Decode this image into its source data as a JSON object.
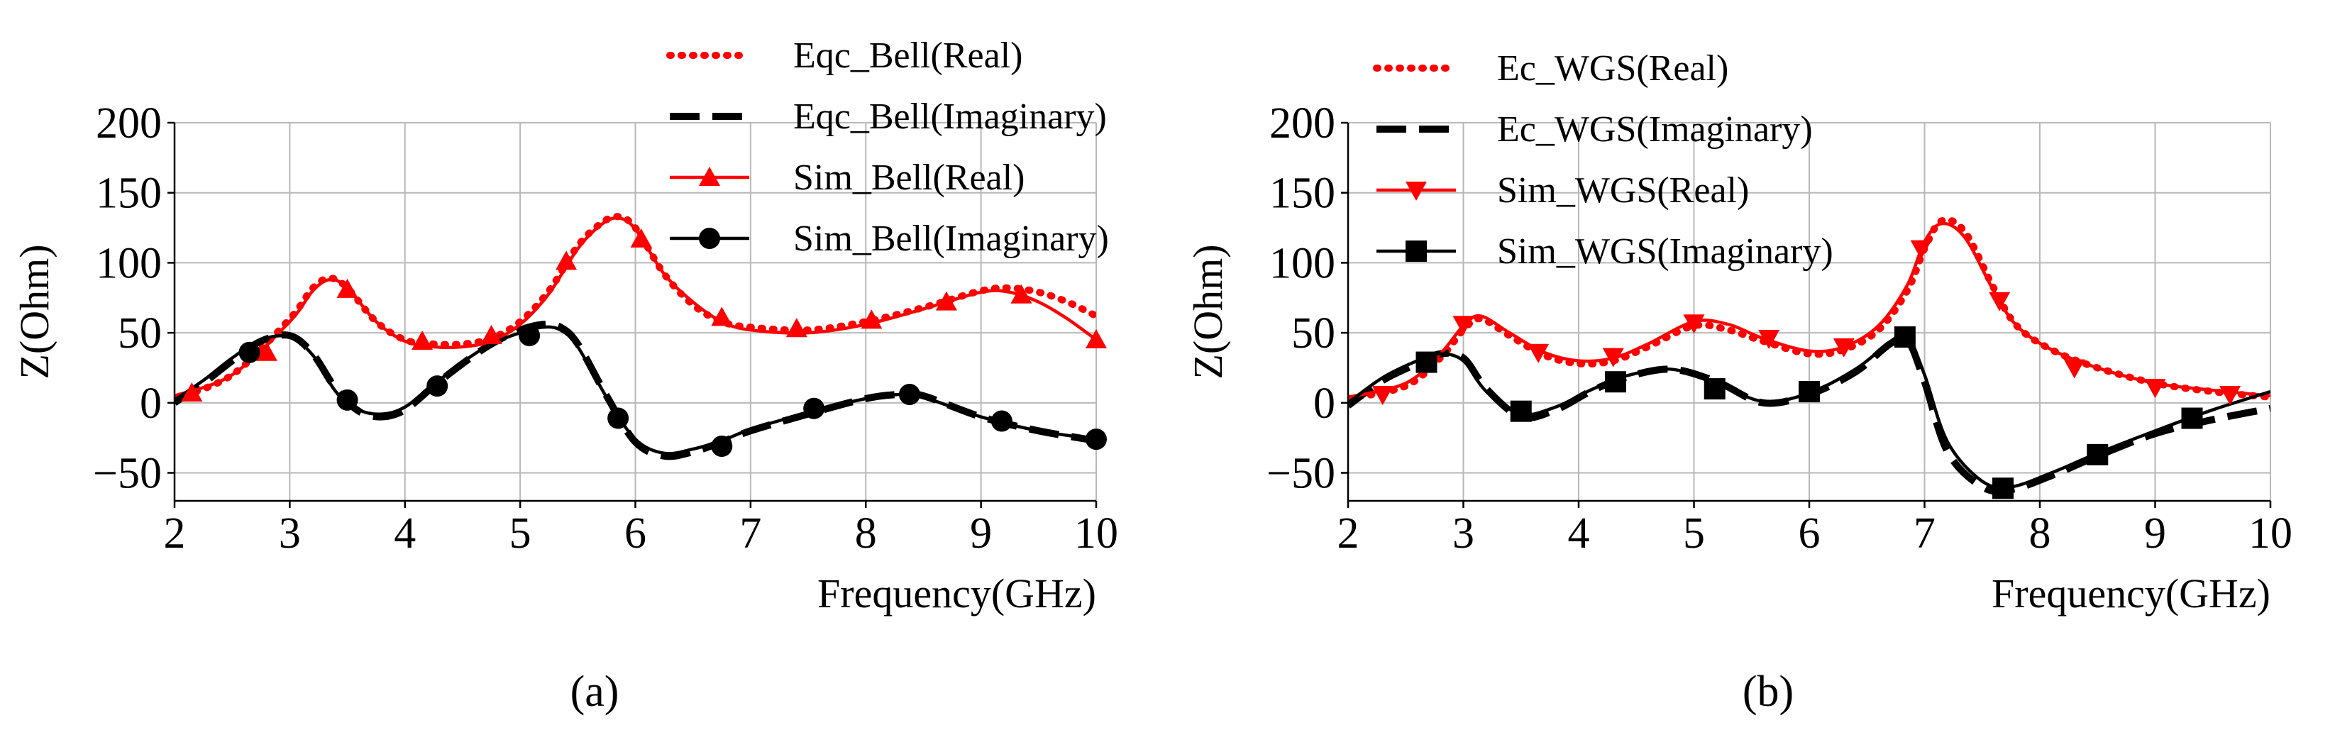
{
  "chart_data": [
    {
      "type": "line",
      "caption": "(a)",
      "xlabel": "Frequency(GHz)",
      "ylabel": "Z(Ohm)",
      "xlim": [
        2,
        10
      ],
      "ylim": [
        -70,
        200
      ],
      "xticks": [
        "2",
        "3",
        "4",
        "5",
        "6",
        "7",
        "8",
        "9",
        "10"
      ],
      "yticks": [
        "−50",
        "0",
        "50",
        "100",
        "150",
        "200"
      ],
      "ytick_values": [
        -50,
        0,
        50,
        100,
        150,
        200
      ],
      "grid": true,
      "legend_position": "top-center",
      "series": [
        {
          "name": "Eqc_Bell(Real)",
          "style": "dotted",
          "color": "#ff0000",
          "x": [
            2,
            2.5,
            3,
            3.2,
            3.35,
            3.5,
            3.75,
            4,
            4.25,
            4.5,
            4.75,
            5,
            5.25,
            5.5,
            5.7,
            5.85,
            6,
            6.25,
            6.5,
            6.75,
            7,
            7.5,
            8,
            8.5,
            9,
            9.25,
            9.5,
            9.75,
            10
          ],
          "y": [
            3,
            20,
            60,
            82,
            89,
            82,
            58,
            45,
            42,
            42,
            46,
            58,
            80,
            112,
            128,
            133,
            125,
            92,
            70,
            58,
            54,
            52,
            58,
            68,
            80,
            82,
            79,
            72,
            62
          ]
        },
        {
          "name": "Eqc_Bell(Imaginary)",
          "style": "dashed",
          "color": "#000000",
          "x": [
            2,
            2.25,
            2.5,
            2.75,
            3,
            3.2,
            3.4,
            3.6,
            3.8,
            4,
            4.25,
            4.5,
            4.75,
            5,
            5.2,
            5.35,
            5.5,
            5.75,
            6,
            6.25,
            6.5,
            6.75,
            7,
            7.5,
            8,
            8.3,
            8.5,
            9,
            9.5,
            10
          ],
          "y": [
            0,
            14,
            30,
            44,
            48,
            35,
            10,
            -6,
            -10,
            -5,
            12,
            28,
            42,
            52,
            56,
            54,
            42,
            5,
            -28,
            -38,
            -35,
            -28,
            -20,
            -8,
            3,
            6,
            5,
            -10,
            -20,
            -27
          ]
        },
        {
          "name": "Sim_Bell(Real)",
          "style": "solid-triangle-up",
          "color": "#ff0000",
          "x": [
            2,
            2.5,
            3,
            3.2,
            3.35,
            3.5,
            3.75,
            4,
            4.25,
            4.5,
            4.75,
            5,
            5.25,
            5.5,
            5.7,
            5.85,
            6,
            6.25,
            6.5,
            6.75,
            7,
            7.5,
            8,
            8.5,
            9,
            9.25,
            9.5,
            9.75,
            10
          ],
          "y": [
            5,
            20,
            58,
            80,
            88,
            82,
            58,
            44,
            40,
            40,
            44,
            56,
            78,
            110,
            127,
            132,
            124,
            92,
            72,
            58,
            52,
            50,
            56,
            67,
            79,
            79,
            72,
            60,
            45
          ],
          "markers_x": [
            2.15,
            2.8,
            3.5,
            4.15,
            4.75,
            5.4,
            6.05,
            6.75,
            7.4,
            8.05,
            8.7,
            9.35,
            10
          ],
          "markers_y": [
            7,
            36,
            81,
            44,
            48,
            101,
            117,
            61,
            53,
            59,
            72,
            77,
            45
          ]
        },
        {
          "name": "Sim_Bell(Imaginary)",
          "style": "solid-circle",
          "color": "#000000",
          "x": [
            2,
            2.25,
            2.5,
            2.75,
            3,
            3.2,
            3.4,
            3.6,
            3.8,
            4,
            4.25,
            4.5,
            4.75,
            5,
            5.2,
            5.35,
            5.5,
            5.75,
            6,
            6.25,
            6.5,
            6.75,
            7,
            7.5,
            8,
            8.3,
            8.5,
            9,
            9.5,
            10
          ],
          "y": [
            2,
            16,
            32,
            45,
            47,
            34,
            8,
            -5,
            -8,
            -3,
            13,
            29,
            42,
            50,
            54,
            52,
            40,
            4,
            -26,
            -36,
            -33,
            -27,
            -19,
            -7,
            3,
            6,
            4,
            -10,
            -20,
            -26
          ],
          "markers_x": [
            2.65,
            3.5,
            4.28,
            5.08,
            5.85,
            6.75,
            7.55,
            8.38,
            9.18,
            10
          ],
          "markers_y": [
            36,
            2,
            12,
            48,
            -11,
            -31,
            -4,
            6,
            -13,
            -26
          ]
        }
      ]
    },
    {
      "type": "line",
      "caption": "(b)",
      "xlabel": "Frequency(GHz)",
      "ylabel": "Z(Ohm)",
      "xlim": [
        2,
        10
      ],
      "ylim": [
        -70,
        200
      ],
      "xticks": [
        "2",
        "3",
        "4",
        "5",
        "6",
        "7",
        "8",
        "9",
        "10"
      ],
      "yticks": [
        "−50",
        "0",
        "50",
        "100",
        "150",
        "200"
      ],
      "ytick_values": [
        -50,
        0,
        50,
        100,
        150,
        200
      ],
      "grid": true,
      "legend_position": "top-left",
      "series": [
        {
          "name": "Ec_WGS(Real)",
          "style": "dotted",
          "color": "#ff0000",
          "x": [
            2,
            2.5,
            2.8,
            3,
            3.15,
            3.4,
            3.7,
            4,
            4.3,
            4.6,
            5,
            5.3,
            5.6,
            6,
            6.3,
            6.6,
            6.85,
            7,
            7.15,
            7.35,
            7.6,
            7.8,
            8.1,
            8.5,
            9,
            9.5,
            10
          ],
          "y": [
            3,
            12,
            32,
            52,
            60,
            48,
            34,
            28,
            30,
            40,
            55,
            52,
            44,
            35,
            38,
            52,
            80,
            110,
            130,
            122,
            82,
            55,
            38,
            25,
            14,
            8,
            4
          ]
        },
        {
          "name": "Ec_WGS(Imaginary)",
          "style": "dashed",
          "color": "#000000",
          "x": [
            2,
            2.3,
            2.6,
            2.8,
            3,
            3.2,
            3.5,
            3.8,
            4.1,
            4.4,
            4.8,
            5.2,
            5.6,
            6,
            6.4,
            6.7,
            6.85,
            7,
            7.2,
            7.5,
            7.75,
            8.1,
            8.5,
            9,
            9.5,
            10
          ],
          "y": [
            -2,
            16,
            28,
            35,
            32,
            10,
            -10,
            -5,
            8,
            18,
            24,
            15,
            0,
            6,
            22,
            42,
            45,
            15,
            -35,
            -60,
            -62,
            -52,
            -38,
            -22,
            -12,
            -4
          ]
        },
        {
          "name": "Sim_WGS(Real)",
          "style": "solid-triangle-down",
          "color": "#ff0000",
          "x": [
            2,
            2.5,
            2.8,
            3,
            3.15,
            3.4,
            3.7,
            4,
            4.3,
            4.6,
            5,
            5.3,
            5.6,
            6,
            6.3,
            6.6,
            6.85,
            7,
            7.15,
            7.35,
            7.6,
            7.8,
            8.1,
            8.5,
            9,
            9.5,
            10
          ],
          "y": [
            4,
            14,
            35,
            55,
            62,
            50,
            36,
            30,
            32,
            42,
            58,
            56,
            46,
            37,
            40,
            55,
            84,
            115,
            128,
            118,
            80,
            55,
            38,
            25,
            14,
            9,
            5
          ],
          "markers_x": [
            2.3,
            3,
            3.65,
            4.3,
            5,
            5.65,
            6.3,
            6.97,
            7.65,
            8.3,
            9,
            9.65
          ],
          "markers_y": [
            6,
            56,
            36,
            33,
            57,
            46,
            40,
            110,
            73,
            25,
            11,
            6
          ]
        },
        {
          "name": "Sim_WGS(Imaginary)",
          "style": "solid-square",
          "color": "#000000",
          "x": [
            2,
            2.3,
            2.6,
            2.8,
            3,
            3.2,
            3.5,
            3.8,
            4.1,
            4.4,
            4.8,
            5.2,
            5.6,
            6,
            6.4,
            6.7,
            6.85,
            7,
            7.2,
            7.5,
            7.75,
            8.1,
            8.5,
            9,
            9.5,
            10
          ],
          "y": [
            0,
            18,
            30,
            35,
            30,
            8,
            -8,
            -3,
            9,
            19,
            24,
            14,
            1,
            7,
            24,
            43,
            47,
            20,
            -28,
            -56,
            -60,
            -50,
            -36,
            -20,
            -5,
            8
          ],
          "markers_x": [
            2.68,
            3.5,
            4.32,
            5.18,
            6.0,
            6.83,
            7.68,
            8.5,
            9.32
          ],
          "markers_y": [
            29,
            -6,
            15,
            10,
            8,
            47,
            -61,
            -37,
            -11
          ]
        }
      ]
    }
  ]
}
